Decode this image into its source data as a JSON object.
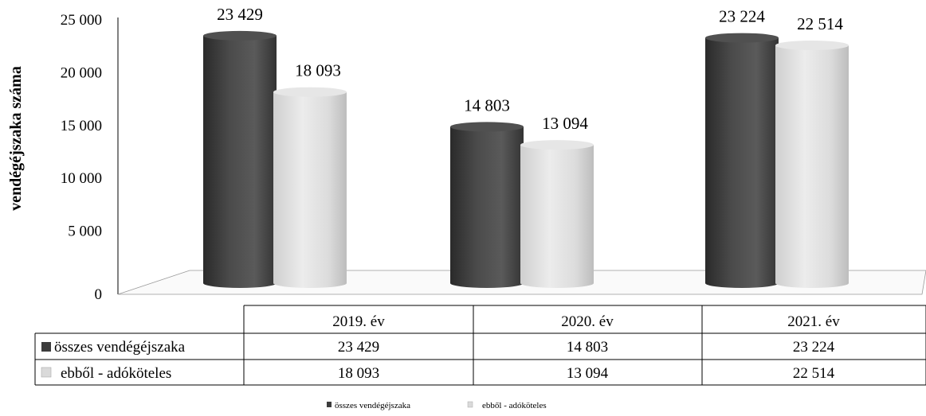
{
  "chart_data": {
    "type": "bar",
    "ylabel": "vendégéjszaka száma",
    "ylim": [
      0,
      25000
    ],
    "yticks": [
      0,
      5000,
      10000,
      15000,
      20000,
      25000
    ],
    "ytick_labels": [
      "0",
      "5 000",
      "10 000",
      "15 000",
      "20 000",
      "25 000"
    ],
    "grid": false,
    "categories": [
      "2019. év",
      "2020. év",
      "2021. év"
    ],
    "series": [
      {
        "name": "összes vendégéjszaka",
        "values": [
          23429,
          14803,
          23224
        ],
        "labels": [
          "23 429",
          "14 803",
          "23 224"
        ],
        "color": "#3c3c3c"
      },
      {
        "name": "ebből - adóköteles",
        "values": [
          18093,
          13094,
          22514
        ],
        "labels": [
          "18 093",
          "13 094",
          "22 514"
        ],
        "color": "#d0d0d0"
      }
    ],
    "data_table": true,
    "legend_position": "bottom-center"
  }
}
